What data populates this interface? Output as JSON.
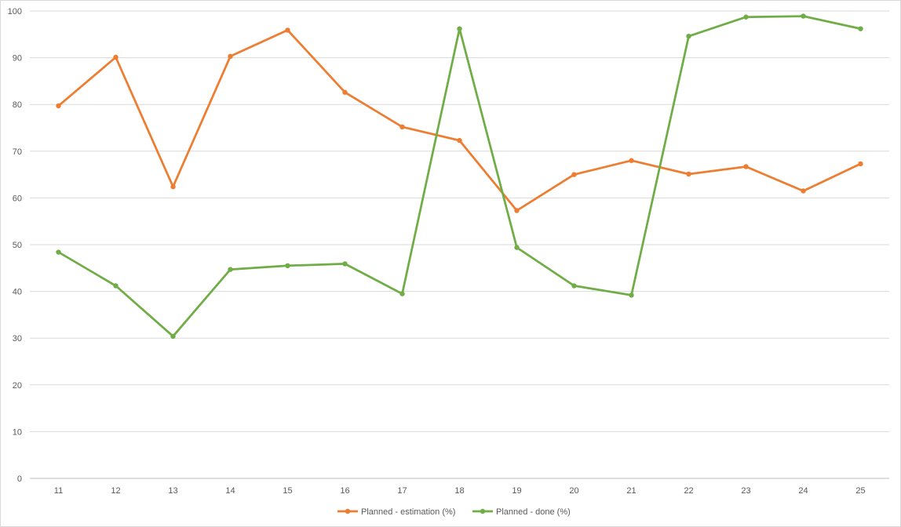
{
  "chart_data": {
    "type": "line",
    "title": "",
    "xlabel": "",
    "ylabel": "",
    "categories": [
      "11",
      "12",
      "13",
      "14",
      "15",
      "16",
      "17",
      "18",
      "19",
      "20",
      "21",
      "22",
      "23",
      "24",
      "25"
    ],
    "ylim": [
      0,
      100
    ],
    "yticks": [
      0,
      10,
      20,
      30,
      40,
      50,
      60,
      70,
      80,
      90,
      100
    ],
    "grid": true,
    "legend_position": "bottom",
    "series": [
      {
        "name": "Planned - estimation (%)",
        "color": "#ed7d31",
        "values": [
          79.7,
          90.1,
          62.4,
          90.3,
          95.9,
          82.6,
          75.2,
          72.3,
          57.3,
          65.0,
          68.0,
          65.1,
          66.7,
          61.5,
          67.3
        ]
      },
      {
        "name": "Planned - done (%)",
        "color": "#70ad47",
        "values": [
          48.4,
          41.2,
          30.4,
          44.7,
          45.5,
          45.9,
          39.5,
          96.2,
          49.4,
          41.2,
          39.2,
          94.6,
          98.7,
          98.9,
          96.2
        ]
      }
    ]
  }
}
